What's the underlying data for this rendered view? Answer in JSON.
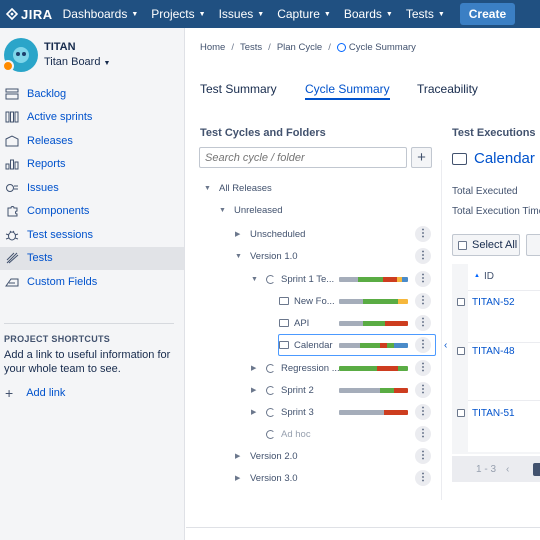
{
  "nav": {
    "logo": "JIRA",
    "items": [
      "Dashboards",
      "Projects",
      "Issues",
      "Capture",
      "Boards",
      "Tests"
    ],
    "create_label": "Create"
  },
  "sidebar": {
    "project_name": "TITAN",
    "board_name": "Titan Board",
    "items": [
      {
        "label": "Backlog",
        "icon": "backlog-icon"
      },
      {
        "label": "Active sprints",
        "icon": "sprints-icon"
      },
      {
        "label": "Releases",
        "icon": "releases-icon"
      },
      {
        "label": "Reports",
        "icon": "reports-icon"
      },
      {
        "label": "Issues",
        "icon": "issues-icon"
      },
      {
        "label": "Components",
        "icon": "components-icon"
      },
      {
        "label": "Test sessions",
        "icon": "test-sessions-icon"
      },
      {
        "label": "Tests",
        "icon": "tests-icon",
        "active": true
      },
      {
        "label": "Custom Fields",
        "icon": "custom-fields-icon"
      }
    ],
    "shortcuts_heading": "PROJECT SHORTCUTS",
    "shortcuts_text": "Add a link to useful information for your whole team to see.",
    "add_link_label": "Add link"
  },
  "breadcrumb": [
    "Home",
    "Tests",
    "Plan Cycle",
    "Cycle Summary"
  ],
  "tabs": [
    "Test Summary",
    "Cycle Summary",
    "Traceability"
  ],
  "left_panel": {
    "heading": "Test Cycles and Folders",
    "search_placeholder": "Search cycle / folder",
    "tree": [
      {
        "label": "All Releases",
        "level": 0,
        "toggle": "open"
      },
      {
        "label": "Unreleased",
        "level": 1,
        "toggle": "open"
      },
      {
        "label": "Unscheduled",
        "level": 2,
        "toggle": "closed",
        "more": true
      },
      {
        "label": "Version 1.0",
        "level": 2,
        "toggle": "open",
        "more": true
      },
      {
        "label": "Sprint 1 Te...",
        "level": 3,
        "toggle": "open",
        "icon": "cycle",
        "more": true,
        "progress": [
          {
            "c": "#a5adba",
            "w": 0.28
          },
          {
            "c": "#5aac44",
            "w": 0.36
          },
          {
            "c": "#cd3d1f",
            "w": 0.2
          },
          {
            "c": "#f6b73c",
            "w": 0.08
          },
          {
            "c": "#4a8bc9",
            "w": 0.08
          }
        ]
      },
      {
        "label": "New Fo...",
        "level": 4,
        "icon": "folder",
        "more": true,
        "progress": [
          {
            "c": "#a5adba",
            "w": 0.35
          },
          {
            "c": "#5aac44",
            "w": 0.5
          },
          {
            "c": "#f6b73c",
            "w": 0.15
          }
        ]
      },
      {
        "label": "API",
        "level": 4,
        "icon": "folder",
        "more": true,
        "progress": [
          {
            "c": "#a5adba",
            "w": 0.35
          },
          {
            "c": "#5aac44",
            "w": 0.32
          },
          {
            "c": "#cd3d1f",
            "w": 0.33
          }
        ]
      },
      {
        "label": "Calendar",
        "level": 4,
        "icon": "folder",
        "more": true,
        "selected": true,
        "progress": [
          {
            "c": "#a5adba",
            "w": 0.3
          },
          {
            "c": "#5aac44",
            "w": 0.3
          },
          {
            "c": "#cd3d1f",
            "w": 0.1
          },
          {
            "c": "#5aac44",
            "w": 0.1
          },
          {
            "c": "#4a8bc9",
            "w": 0.2
          }
        ]
      },
      {
        "label": "Regression ...",
        "level": 3,
        "toggle": "closed",
        "icon": "cycle",
        "more": true,
        "progress": [
          {
            "c": "#5aac44",
            "w": 0.55
          },
          {
            "c": "#cd3d1f",
            "w": 0.3
          },
          {
            "c": "#5aac44",
            "w": 0.15
          }
        ]
      },
      {
        "label": "Sprint 2",
        "level": 3,
        "toggle": "closed",
        "icon": "cycle",
        "more": true,
        "progress": [
          {
            "c": "#a5adba",
            "w": 0.6
          },
          {
            "c": "#5aac44",
            "w": 0.2
          },
          {
            "c": "#cd3d1f",
            "w": 0.2
          }
        ]
      },
      {
        "label": "Sprint 3",
        "level": 3,
        "toggle": "closed",
        "icon": "cycle",
        "more": true,
        "progress": [
          {
            "c": "#a5adba",
            "w": 0.65
          },
          {
            "c": "#cd3d1f",
            "w": 0.35
          }
        ]
      },
      {
        "label": "Ad hoc",
        "level": 3,
        "icon": "cycle",
        "muted": true,
        "more": true
      },
      {
        "label": "Version 2.0",
        "level": 2,
        "toggle": "closed",
        "more": true
      },
      {
        "label": "Version 3.0",
        "level": 2,
        "toggle": "closed",
        "more": true
      }
    ]
  },
  "right_panel": {
    "heading": "Test Executions",
    "folder_name": "Calendar",
    "total_executed_label": "Total Executed",
    "total_time_label": "Total Execution Time",
    "select_all_label": "Select All",
    "id_header": "ID",
    "executions": [
      "TITAN-52",
      "TITAN-48",
      "TITAN-51"
    ],
    "pager_text": "1 - 3"
  }
}
